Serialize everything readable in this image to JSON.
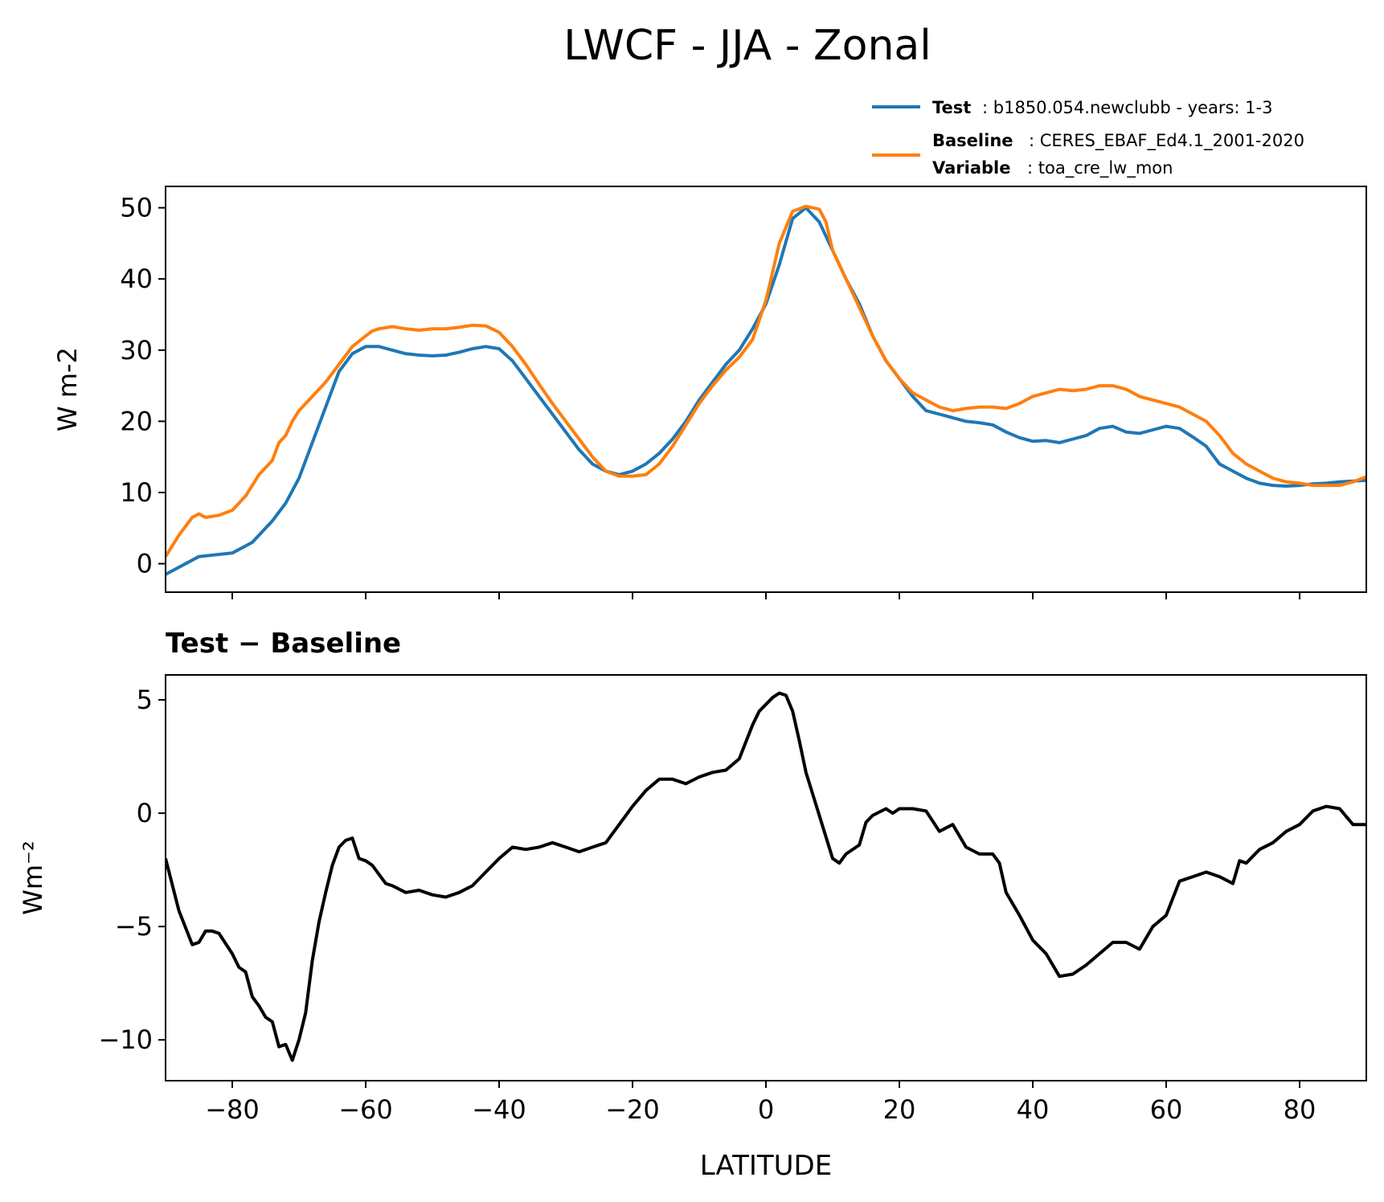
{
  "figure": {
    "title": "LWCF - JJA - Zonal"
  },
  "legend": {
    "test_key": "Test",
    "test_value": ": b1850.054.newclubb - years: 1-3",
    "baseline_key": "Baseline",
    "baseline_value": ": CERES_EBAF_Ed4.1_2001-2020",
    "variable_key": "Variable",
    "variable_value": ": toa_cre_lw_mon"
  },
  "colors": {
    "test": "#1f77b4",
    "baseline": "#ff7f0e",
    "diff": "#000000"
  },
  "chart_data": [
    {
      "type": "line",
      "title": "",
      "xlabel": "",
      "ylabel": "W m-2",
      "xlim": [
        -90,
        90
      ],
      "ylim": [
        -4,
        53
      ],
      "yticks": [
        0,
        10,
        20,
        30,
        40,
        50
      ],
      "ytick_labels": [
        "0",
        "10",
        "20",
        "30",
        "40",
        "50"
      ],
      "series": [
        {
          "name": "Test",
          "x": [
            -90,
            -85,
            -80,
            -77,
            -74,
            -72,
            -70,
            -68,
            -66,
            -64,
            -62,
            -60,
            -58,
            -56,
            -54,
            -52,
            -50,
            -48,
            -46,
            -44,
            -42,
            -40,
            -38,
            -36,
            -34,
            -32,
            -30,
            -28,
            -26,
            -24,
            -22,
            -20,
            -18,
            -16,
            -14,
            -12,
            -10,
            -8,
            -6,
            -4,
            -2,
            0,
            2,
            4,
            6,
            8,
            10,
            12,
            14,
            16,
            18,
            20,
            22,
            24,
            26,
            28,
            30,
            32,
            34,
            36,
            38,
            40,
            42,
            44,
            46,
            48,
            50,
            52,
            54,
            56,
            58,
            60,
            62,
            64,
            66,
            68,
            70,
            72,
            74,
            76,
            78,
            80,
            82,
            84,
            86,
            88,
            90
          ],
          "values": [
            -1.5,
            1,
            1.5,
            3,
            6,
            8.5,
            12,
            17,
            22,
            27,
            29.5,
            30.5,
            30.5,
            30,
            29.5,
            29.3,
            29.2,
            29.3,
            29.7,
            30.2,
            30.5,
            30.2,
            28.5,
            26,
            23.5,
            21,
            18.5,
            16,
            14,
            13,
            12.5,
            13,
            14,
            15.5,
            17.5,
            20,
            23,
            25.5,
            28,
            30,
            33,
            36.5,
            42,
            48.5,
            50,
            48,
            44,
            40,
            36.5,
            32,
            28.5,
            26,
            23.5,
            21.5,
            21,
            20.5,
            20,
            19.8,
            19.5,
            18.5,
            17.7,
            17.2,
            17.3,
            17,
            17.5,
            18,
            19,
            19.3,
            18.5,
            18.3,
            18.8,
            19.3,
            19,
            17.8,
            16.5,
            14,
            13,
            12,
            11.3,
            11,
            10.9,
            11,
            11.2,
            11.3,
            11.5,
            11.6,
            11.7
          ]
        },
        {
          "name": "Baseline",
          "x": [
            -90,
            -88,
            -86,
            -85,
            -84,
            -82,
            -80,
            -78,
            -77,
            -76,
            -74,
            -73,
            -72,
            -71,
            -70,
            -68,
            -66,
            -64,
            -62,
            -60,
            -59,
            -58,
            -56,
            -54,
            -52,
            -50,
            -48,
            -46,
            -44,
            -42,
            -40,
            -38,
            -36,
            -34,
            -32,
            -30,
            -28,
            -26,
            -24,
            -22,
            -20,
            -18,
            -16,
            -14,
            -12,
            -10,
            -8,
            -6,
            -4,
            -2,
            0,
            2,
            4,
            6,
            8,
            9,
            10,
            12,
            14,
            16,
            18,
            20,
            22,
            24,
            26,
            28,
            30,
            32,
            34,
            36,
            38,
            40,
            42,
            44,
            46,
            48,
            50,
            52,
            54,
            56,
            58,
            60,
            62,
            64,
            66,
            68,
            70,
            72,
            74,
            76,
            78,
            80,
            82,
            84,
            86,
            88,
            90
          ],
          "values": [
            1,
            4,
            6.5,
            7,
            6.5,
            6.8,
            7.5,
            9.5,
            11,
            12.5,
            14.5,
            17,
            18,
            20,
            21.5,
            23.5,
            25.5,
            28,
            30.5,
            32,
            32.7,
            33,
            33.3,
            33,
            32.8,
            33,
            33,
            33.2,
            33.5,
            33.4,
            32.5,
            30.5,
            28,
            25.2,
            22.5,
            20,
            17.5,
            15,
            13,
            12.3,
            12.3,
            12.5,
            14,
            16.5,
            19.5,
            22.5,
            25,
            27.2,
            29,
            31.5,
            37,
            45,
            49.5,
            50.2,
            49.8,
            48,
            44,
            40,
            36,
            32,
            28.5,
            26,
            24,
            23,
            22,
            21.5,
            21.8,
            22,
            22,
            21.8,
            22.5,
            23.5,
            24,
            24.5,
            24.3,
            24.5,
            25,
            25,
            24.5,
            23.5,
            23,
            22.5,
            22,
            21,
            20,
            18,
            15.5,
            14,
            13,
            12,
            11.5,
            11.3,
            11,
            11,
            11,
            11.5,
            12.2
          ]
        }
      ]
    },
    {
      "type": "line",
      "title": "Test − Baseline",
      "xlabel": "LATITUDE",
      "ylabel": "Wm⁻²",
      "xlim": [
        -90,
        90
      ],
      "ylim": [
        -11.8,
        6.1
      ],
      "xticks": [
        -80,
        -60,
        -40,
        -20,
        0,
        20,
        40,
        60,
        80
      ],
      "xtick_labels": [
        "−80",
        "−60",
        "−40",
        "−20",
        "0",
        "20",
        "40",
        "60",
        "80"
      ],
      "yticks": [
        -10,
        -5,
        0,
        5
      ],
      "ytick_labels": [
        "−10",
        "−5",
        "0",
        "5"
      ],
      "series": [
        {
          "name": "Test − Baseline",
          "x": [
            -90,
            -88,
            -86,
            -85,
            -84,
            -83,
            -82,
            -80,
            -79,
            -78,
            -77,
            -76,
            -75,
            -74,
            -73,
            -72,
            -71,
            -70,
            -69,
            -68,
            -67,
            -66,
            -65,
            -64,
            -63,
            -62,
            -61,
            -60,
            -59,
            -58,
            -57,
            -56,
            -54,
            -52,
            -50,
            -48,
            -46,
            -44,
            -42,
            -40,
            -38,
            -36,
            -34,
            -32,
            -30,
            -28,
            -26,
            -24,
            -22,
            -20,
            -18,
            -16,
            -14,
            -12,
            -10,
            -8,
            -6,
            -4,
            -2,
            -1,
            0,
            1,
            2,
            3,
            4,
            5,
            6,
            8,
            10,
            11,
            12,
            14,
            15,
            16,
            18,
            19,
            20,
            22,
            24,
            26,
            28,
            30,
            32,
            34,
            35,
            36,
            38,
            40,
            42,
            44,
            46,
            48,
            50,
            52,
            54,
            56,
            58,
            60,
            62,
            64,
            66,
            68,
            70,
            71,
            72,
            74,
            76,
            78,
            80,
            82,
            84,
            86,
            88,
            90
          ],
          "values": [
            -2,
            -4.3,
            -5.8,
            -5.7,
            -5.2,
            -5.2,
            -5.3,
            -6.2,
            -6.8,
            -7,
            -8.1,
            -8.5,
            -9,
            -9.2,
            -10.3,
            -10.2,
            -10.9,
            -10,
            -8.8,
            -6.5,
            -4.8,
            -3.5,
            -2.3,
            -1.5,
            -1.2,
            -1.1,
            -2,
            -2.1,
            -2.3,
            -2.7,
            -3.1,
            -3.2,
            -3.5,
            -3.4,
            -3.6,
            -3.7,
            -3.5,
            -3.2,
            -2.6,
            -2,
            -1.5,
            -1.6,
            -1.5,
            -1.3,
            -1.5,
            -1.7,
            -1.5,
            -1.3,
            -0.5,
            0.3,
            1,
            1.5,
            1.5,
            1.3,
            1.6,
            1.8,
            1.9,
            2.4,
            3.9,
            4.5,
            4.8,
            5.1,
            5.3,
            5.2,
            4.5,
            3.2,
            1.8,
            -0.1,
            -2,
            -2.2,
            -1.8,
            -1.4,
            -0.4,
            -0.1,
            0.2,
            0,
            0.2,
            0.2,
            0.1,
            -0.8,
            -0.5,
            -1.5,
            -1.8,
            -1.8,
            -2.2,
            -3.5,
            -4.5,
            -5.6,
            -6.2,
            -7.2,
            -7.1,
            -6.7,
            -6.2,
            -5.7,
            -5.7,
            -6,
            -5,
            -4.5,
            -3,
            -2.8,
            -2.6,
            -2.8,
            -3.1,
            -2.1,
            -2.2,
            -1.6,
            -1.3,
            -0.8,
            -0.5,
            0.1,
            0.3,
            0.2,
            -0.5,
            -0.5
          ]
        }
      ]
    }
  ]
}
